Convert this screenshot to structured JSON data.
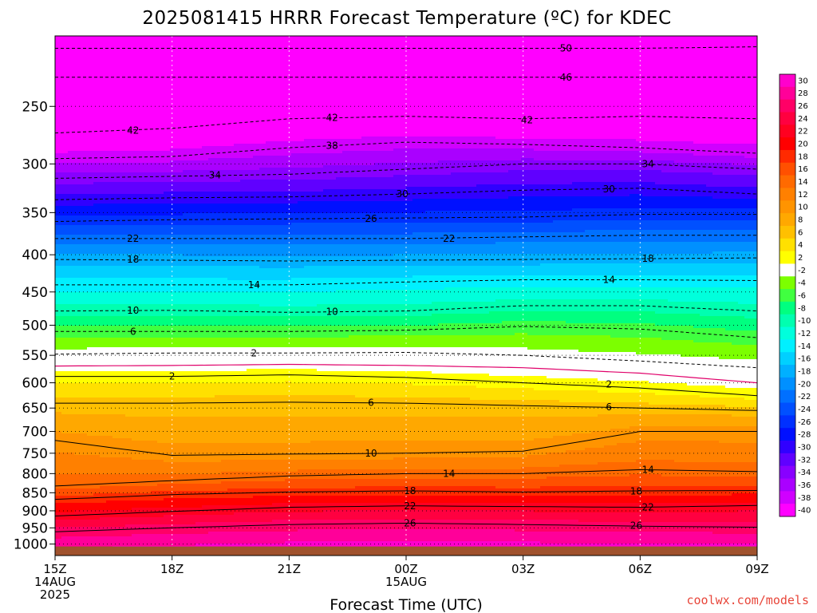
{
  "title": "2025081415 HRRR Forecast Temperature (ºC) for KDEC",
  "credit": "coolwx.com/models",
  "chart_data": {
    "type": "contour",
    "title": "2025081415 HRRR Forecast Temperature (ºC) for KDEC",
    "xlabel": "Forecast Time (UTC)",
    "ylabel": "",
    "x_ticks": [
      {
        "label": "15Z",
        "sub": [
          "14AUG",
          "2025"
        ],
        "hour": 0
      },
      {
        "label": "18Z",
        "sub": [],
        "hour": 3
      },
      {
        "label": "21Z",
        "sub": [],
        "hour": 6
      },
      {
        "label": "00Z",
        "sub": [
          "15AUG"
        ],
        "hour": 9
      },
      {
        "label": "03Z",
        "sub": [],
        "hour": 12
      },
      {
        "label": "06Z",
        "sub": [],
        "hour": 15
      },
      {
        "label": "09Z",
        "sub": [],
        "hour": 18
      }
    ],
    "xlim_hours": [
      0,
      18
    ],
    "y_scale": "log",
    "y_ticks": [
      250,
      300,
      350,
      400,
      450,
      500,
      550,
      600,
      650,
      700,
      750,
      800,
      850,
      900,
      950,
      1000
    ],
    "ylim_hpa": [
      1037,
      200
    ],
    "grid": "dotted",
    "colorbar": {
      "labels": [
        30,
        28,
        26,
        24,
        22,
        20,
        18,
        16,
        14,
        12,
        10,
        8,
        6,
        4,
        2,
        -2,
        -4,
        -6,
        -8,
        -10,
        -12,
        -14,
        -16,
        -18,
        -20,
        -22,
        -24,
        -26,
        -28,
        -30,
        -32,
        -34,
        -36,
        -38,
        -40
      ],
      "colors": [
        "#ff00cc",
        "#ff0099",
        "#ff0066",
        "#ff0040",
        "#ff0020",
        "#ff0000",
        "#ff2a00",
        "#ff5000",
        "#ff6a00",
        "#ff8000",
        "#ff9400",
        "#ffa800",
        "#ffc000",
        "#ffe000",
        "#ffff00",
        "#ffffff",
        "#7cff00",
        "#40ff40",
        "#00ff80",
        "#00ffb0",
        "#00ffdc",
        "#00f0ff",
        "#00d0ff",
        "#00b0ff",
        "#0090ff",
        "#0070ff",
        "#0050ff",
        "#0030ff",
        "#0010ff",
        "#3000ff",
        "#6000ff",
        "#8800ff",
        "#aa00ff",
        "#d000ff",
        "#ff00ff"
      ],
      "position": "right"
    },
    "contour_interval_c": 4,
    "contours": [
      {
        "level": -50,
        "p": [
          208,
          208,
          208,
          208,
          208,
          208,
          207
        ]
      },
      {
        "level": -46,
        "p": [
          228,
          228,
          228,
          228,
          228,
          228,
          228
        ]
      },
      {
        "level": -42,
        "p": [
          272,
          268,
          260,
          258,
          260,
          258,
          260
        ]
      },
      {
        "level": -38,
        "p": [
          295,
          293,
          285,
          280,
          282,
          285,
          290
        ]
      },
      {
        "level": -34,
        "p": [
          314,
          312,
          310,
          305,
          300,
          300,
          305
        ]
      },
      {
        "level": -30,
        "p": [
          336,
          334,
          333,
          330,
          326,
          324,
          330
        ]
      },
      {
        "level": -26,
        "p": [
          360,
          358,
          357,
          356,
          355,
          352,
          352
        ]
      },
      {
        "level": -22,
        "p": [
          380,
          380,
          380,
          380,
          378,
          376,
          376
        ]
      },
      {
        "level": -18,
        "p": [
          406,
          407,
          408,
          407,
          406,
          405,
          404
        ]
      },
      {
        "level": -14,
        "p": [
          440,
          440,
          440,
          436,
          433,
          433,
          434
        ]
      },
      {
        "level": -10,
        "p": [
          478,
          477,
          480,
          478,
          470,
          470,
          478
        ]
      },
      {
        "level": -6,
        "p": [
          510,
          510,
          510,
          508,
          502,
          506,
          520
        ]
      },
      {
        "level": -2,
        "p": [
          548,
          546,
          546,
          545,
          550,
          560,
          572
        ]
      },
      {
        "level": 2,
        "p": [
          588,
          588,
          585,
          590,
          600,
          610,
          625
        ]
      },
      {
        "level": 6,
        "p": [
          640,
          640,
          638,
          640,
          645,
          650,
          655
        ]
      },
      {
        "level": 10,
        "p": [
          720,
          755,
          752,
          750,
          745,
          700,
          700
        ]
      },
      {
        "level": 14,
        "p": [
          832,
          818,
          806,
          800,
          800,
          790,
          795
        ]
      },
      {
        "level": 18,
        "p": [
          868,
          855,
          848,
          845,
          848,
          845,
          844
        ]
      },
      {
        "level": 22,
        "p": [
          915,
          902,
          890,
          886,
          888,
          890,
          885
        ]
      },
      {
        "level": 26,
        "p": [
          962,
          950,
          940,
          936,
          940,
          945,
          948
        ]
      }
    ],
    "contour_labels": [
      {
        "text": "50",
        "hour": 13.1,
        "p": 208
      },
      {
        "text": "46",
        "hour": 13.1,
        "p": 228
      },
      {
        "text": "42",
        "hour": 2.0,
        "p": 270
      },
      {
        "text": "42",
        "hour": 7.1,
        "p": 259
      },
      {
        "text": "42",
        "hour": 12.1,
        "p": 261
      },
      {
        "text": "38",
        "hour": 7.1,
        "p": 283
      },
      {
        "text": "34",
        "hour": 4.1,
        "p": 311
      },
      {
        "text": "34",
        "hour": 15.2,
        "p": 300
      },
      {
        "text": "30",
        "hour": 8.9,
        "p": 330
      },
      {
        "text": "30",
        "hour": 14.2,
        "p": 325
      },
      {
        "text": "26",
        "hour": 8.1,
        "p": 357
      },
      {
        "text": "22",
        "hour": 2.0,
        "p": 380
      },
      {
        "text": "22",
        "hour": 10.1,
        "p": 380
      },
      {
        "text": "18",
        "hour": 2.0,
        "p": 406
      },
      {
        "text": "18",
        "hour": 15.2,
        "p": 405
      },
      {
        "text": "14",
        "hour": 5.1,
        "p": 440
      },
      {
        "text": "14",
        "hour": 14.2,
        "p": 433
      },
      {
        "text": "10",
        "hour": 2.0,
        "p": 477
      },
      {
        "text": "10",
        "hour": 7.1,
        "p": 479
      },
      {
        "text": "6",
        "hour": 2.0,
        "p": 510
      },
      {
        "text": "2",
        "hour": 5.1,
        "p": 546
      },
      {
        "text": "2",
        "hour": 3.0,
        "p": 588
      },
      {
        "text": "2",
        "hour": 14.2,
        "p": 603
      },
      {
        "text": "6",
        "hour": 8.1,
        "p": 639
      },
      {
        "text": "6",
        "hour": 14.2,
        "p": 648
      },
      {
        "text": "10",
        "hour": 8.1,
        "p": 750
      },
      {
        "text": "14",
        "hour": 10.1,
        "p": 800
      },
      {
        "text": "14",
        "hour": 15.2,
        "p": 790
      },
      {
        "text": "18",
        "hour": 9.1,
        "p": 845
      },
      {
        "text": "18",
        "hour": 14.9,
        "p": 846
      },
      {
        "text": "22",
        "hour": 9.1,
        "p": 886
      },
      {
        "text": "22",
        "hour": 15.2,
        "p": 890
      },
      {
        "text": "26",
        "hour": 9.1,
        "p": 936
      },
      {
        "text": "26",
        "hour": 14.9,
        "p": 943
      }
    ],
    "freezing_line_c": 0,
    "freezing_line": [
      569,
      568,
      566,
      568,
      572,
      582,
      600
    ],
    "surface_color": "#a0522d"
  }
}
